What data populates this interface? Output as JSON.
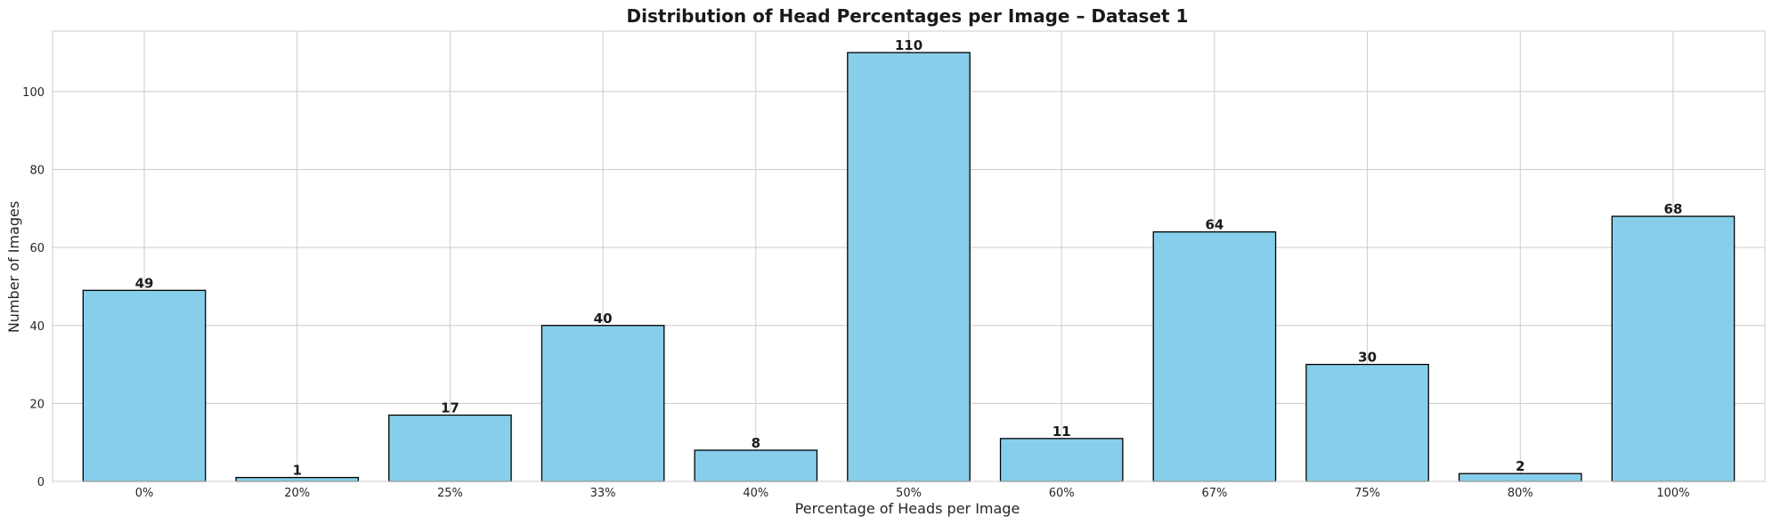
{
  "chart_data": {
    "type": "bar",
    "title": "Distribution of Head Percentages per Image – Dataset 1",
    "xlabel": "Percentage of Heads per Image",
    "ylabel": "Number of Images",
    "categories": [
      "0%",
      "20%",
      "25%",
      "33%",
      "40%",
      "50%",
      "60%",
      "67%",
      "75%",
      "80%",
      "100%"
    ],
    "values": [
      49,
      1,
      17,
      40,
      8,
      110,
      11,
      64,
      30,
      2,
      68
    ],
    "data_labels": [
      "49",
      "1",
      "17",
      "40",
      "8",
      "110",
      "11",
      "64",
      "30",
      "2",
      "68"
    ],
    "ylim": [
      0,
      115.5
    ],
    "yticks": [
      0,
      20,
      40,
      60,
      80,
      100
    ],
    "ytick_labels": [
      "0",
      "20",
      "40",
      "60",
      "80",
      "100"
    ],
    "grid": true,
    "bar_color": "#87CEEB",
    "bar_edge_color": "#000000",
    "grid_color": "#cccccc",
    "frame_color": "#cccccc"
  }
}
